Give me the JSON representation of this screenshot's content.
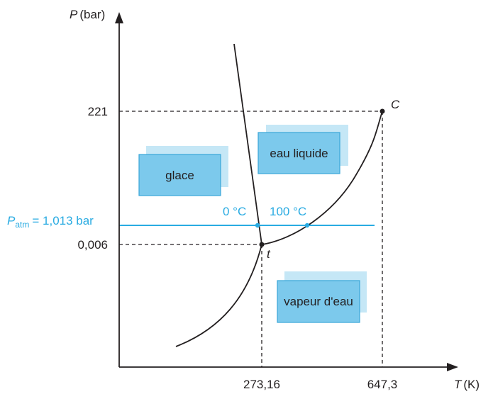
{
  "axes": {
    "y_label": "(bar)",
    "y_symbol": "P",
    "x_label": "(K)",
    "x_symbol": "T"
  },
  "y_ticks": [
    "221",
    "0,006"
  ],
  "x_ticks": [
    "273,16",
    "647,3"
  ],
  "points": {
    "critical": "C",
    "triple": "t"
  },
  "patm": {
    "symbol": "P",
    "subscript": "atm",
    "value": "= 1,013 bar",
    "freezing": "0 °C",
    "boiling": "100 °C"
  },
  "regions": {
    "solid": "glace",
    "liquid": "eau liquide",
    "gas": "vapeur d'eau"
  },
  "colors": {
    "ink": "#231f20",
    "accent": "#29abe2",
    "box_front": "#7cc9ec",
    "box_back": "#c5e7f6"
  }
}
